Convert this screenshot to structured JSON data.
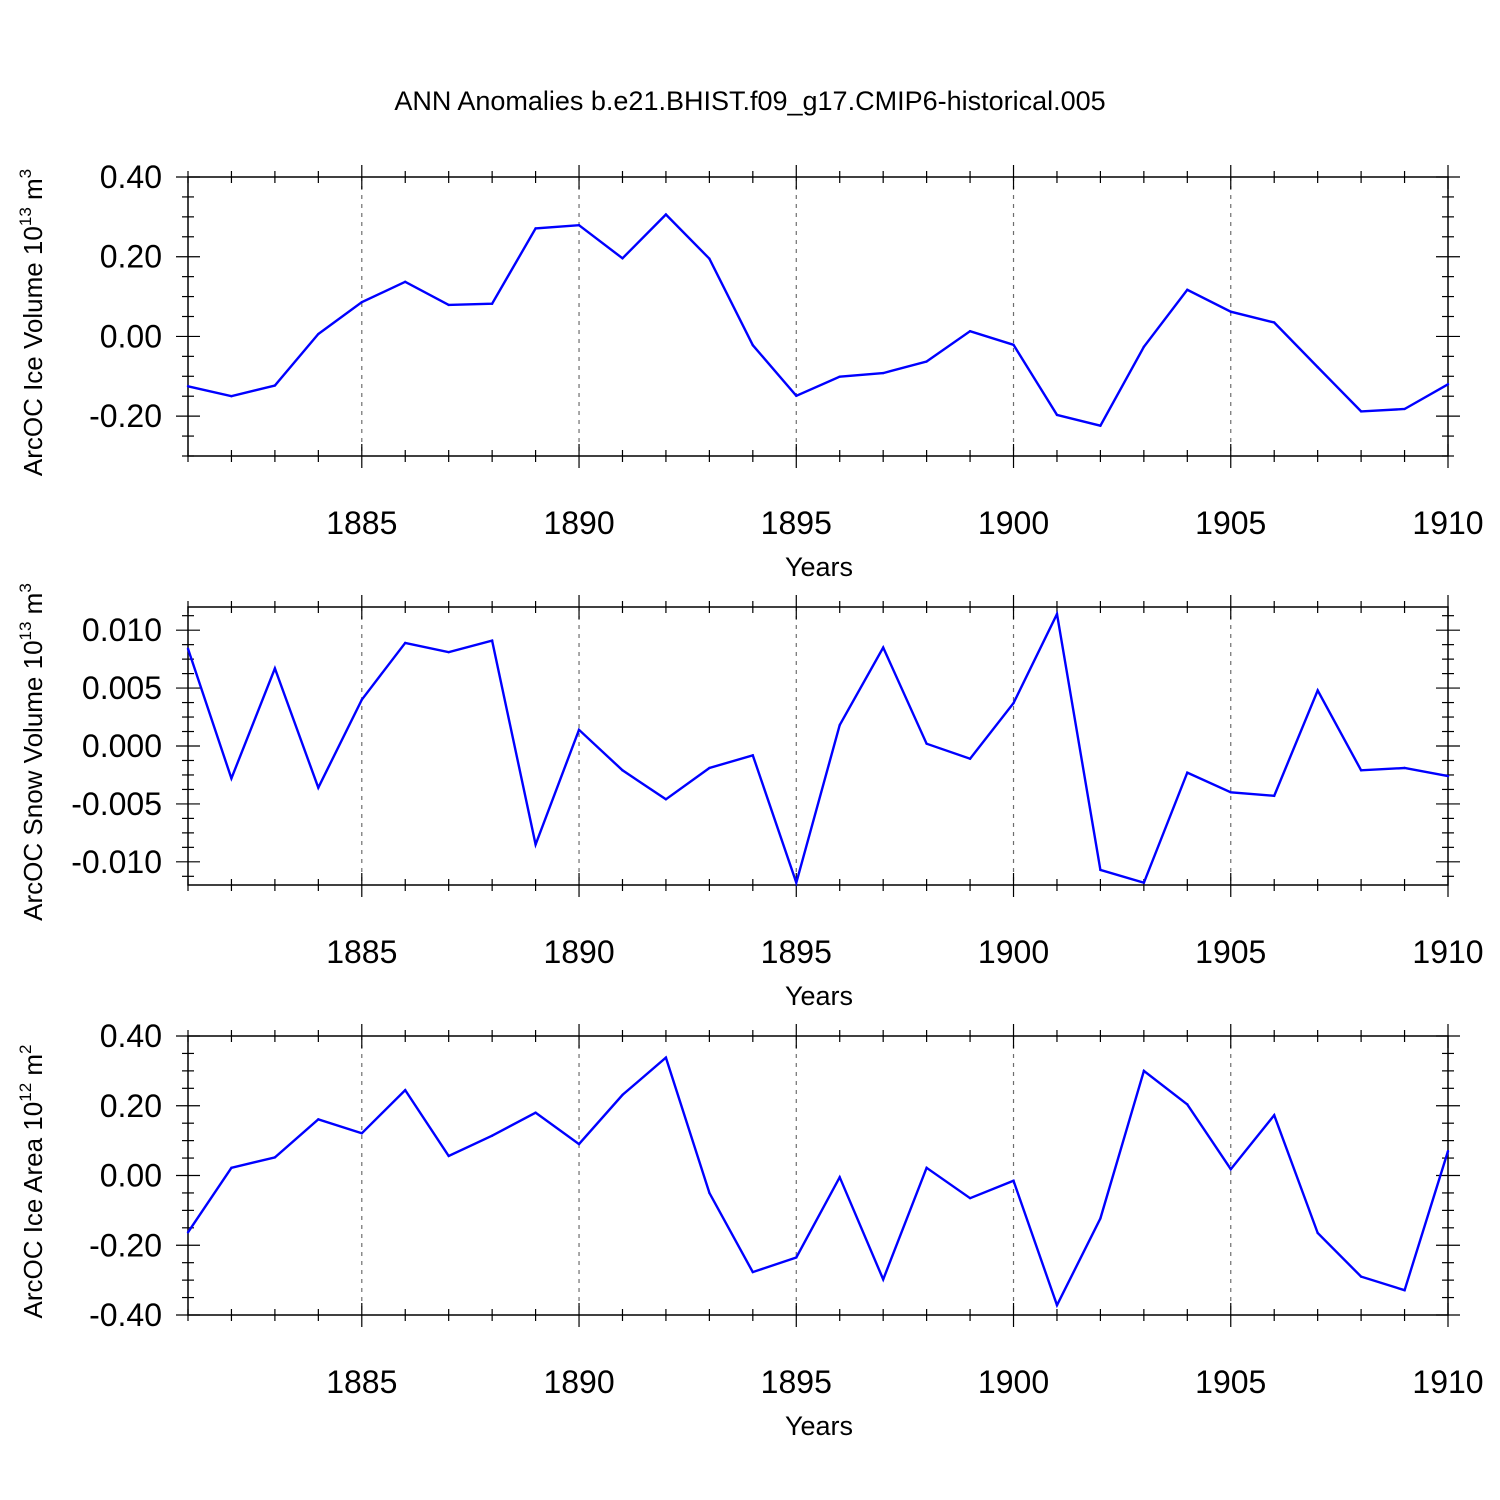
{
  "title": "ANN Anomalies b.e21.BHIST.f09_g17.CMIP6-historical.005",
  "chart_data": [
    {
      "type": "line",
      "title": "ANN Anomalies b.e21.BHIST.f09_g17.CMIP6-historical.005",
      "ylabel": "ArcOC Ice Volume 10",
      "ylabel_exponent": "13",
      "ylabel_unit": " m",
      "ylabel_unit_exponent": "3",
      "xlabel": "Years",
      "xlim": [
        1881,
        1910
      ],
      "ylim": [
        -0.3,
        0.4
      ],
      "xticks": [
        1885,
        1890,
        1895,
        1900,
        1905,
        1910
      ],
      "xtick_labels": [
        "1885",
        "1890",
        "1895",
        "1900",
        "1905",
        "1910"
      ],
      "yticks": [
        -0.2,
        0.0,
        0.2,
        0.4
      ],
      "ytick_labels": [
        "-0.20",
        "0.00",
        "0.20",
        "0.40"
      ],
      "grid": "vertical dashed at major x ticks",
      "line_color": "#0000ff",
      "series": [
        {
          "name": "ArcOC Ice Volume",
          "x": [
            1881,
            1882,
            1883,
            1884,
            1885,
            1886,
            1887,
            1888,
            1889,
            1890,
            1891,
            1892,
            1893,
            1894,
            1895,
            1896,
            1897,
            1898,
            1899,
            1900,
            1901,
            1902,
            1903,
            1904,
            1905,
            1906,
            1907,
            1908,
            1909,
            1910
          ],
          "values": [
            -0.125,
            -0.15,
            -0.123,
            0.006,
            0.086,
            0.137,
            0.079,
            0.082,
            0.271,
            0.279,
            0.196,
            0.306,
            0.195,
            -0.022,
            -0.149,
            -0.101,
            -0.092,
            -0.063,
            0.013,
            -0.021,
            -0.197,
            -0.224,
            -0.026,
            0.117,
            0.062,
            0.035,
            -0.077,
            -0.188,
            -0.182,
            -0.12
          ]
        }
      ]
    },
    {
      "type": "line",
      "ylabel": "ArcOC Snow Volume 10",
      "ylabel_exponent": "13",
      "ylabel_unit": " m",
      "ylabel_unit_exponent": "3",
      "xlabel": "Years",
      "xlim": [
        1881,
        1910
      ],
      "ylim": [
        -0.012,
        0.012
      ],
      "xticks": [
        1885,
        1890,
        1895,
        1900,
        1905,
        1910
      ],
      "xtick_labels": [
        "1885",
        "1890",
        "1895",
        "1900",
        "1905",
        "1910"
      ],
      "yticks": [
        -0.01,
        -0.005,
        0.0,
        0.005,
        0.01
      ],
      "ytick_labels": [
        "-0.010",
        "-0.005",
        "0.000",
        "0.005",
        "0.010"
      ],
      "grid": "vertical dashed at major x ticks",
      "line_color": "#0000ff",
      "series": [
        {
          "name": "ArcOC Snow Volume",
          "x": [
            1881,
            1882,
            1883,
            1884,
            1885,
            1886,
            1887,
            1888,
            1889,
            1890,
            1891,
            1892,
            1893,
            1894,
            1895,
            1896,
            1897,
            1898,
            1899,
            1900,
            1901,
            1902,
            1903,
            1904,
            1905,
            1906,
            1907,
            1908,
            1909,
            1910
          ],
          "values": [
            0.0084,
            -0.0028,
            0.0067,
            -0.0036,
            0.004,
            0.0089,
            0.0081,
            0.0091,
            -0.0085,
            0.0014,
            -0.0021,
            -0.0046,
            -0.0019,
            -0.0008,
            -0.0118,
            0.0018,
            0.0085,
            0.0002,
            -0.0011,
            0.0037,
            0.0114,
            -0.0107,
            -0.0118,
            -0.0023,
            -0.004,
            -0.0043,
            0.0048,
            -0.0021,
            -0.0019,
            -0.0026
          ]
        }
      ]
    },
    {
      "type": "line",
      "ylabel": "ArcOC Ice Area 10",
      "ylabel_exponent": "12",
      "ylabel_unit": " m",
      "ylabel_unit_exponent": "2",
      "xlabel": "Years",
      "xlim": [
        1881,
        1910
      ],
      "ylim": [
        -0.4,
        0.4
      ],
      "xticks": [
        1885,
        1890,
        1895,
        1900,
        1905,
        1910
      ],
      "xtick_labels": [
        "1885",
        "1890",
        "1895",
        "1900",
        "1905",
        "1910"
      ],
      "yticks": [
        -0.4,
        -0.2,
        0.0,
        0.2,
        0.4
      ],
      "ytick_labels": [
        "-0.40",
        "-0.20",
        "0.00",
        "0.20",
        "0.40"
      ],
      "grid": "vertical dashed at major x ticks",
      "line_color": "#0000ff",
      "series": [
        {
          "name": "ArcOC Ice Area",
          "x": [
            1881,
            1882,
            1883,
            1884,
            1885,
            1886,
            1887,
            1888,
            1889,
            1890,
            1891,
            1892,
            1893,
            1894,
            1895,
            1896,
            1897,
            1898,
            1899,
            1900,
            1901,
            1902,
            1903,
            1904,
            1905,
            1906,
            1907,
            1908,
            1909,
            1910
          ],
          "values": [
            -0.163,
            0.022,
            0.052,
            0.161,
            0.121,
            0.245,
            0.056,
            0.114,
            0.18,
            0.09,
            0.231,
            0.338,
            -0.05,
            -0.277,
            -0.235,
            -0.005,
            -0.298,
            0.022,
            -0.065,
            -0.015,
            -0.372,
            -0.123,
            0.3,
            0.204,
            0.018,
            0.173,
            -0.165,
            -0.29,
            -0.329,
            0.07
          ]
        }
      ]
    }
  ]
}
